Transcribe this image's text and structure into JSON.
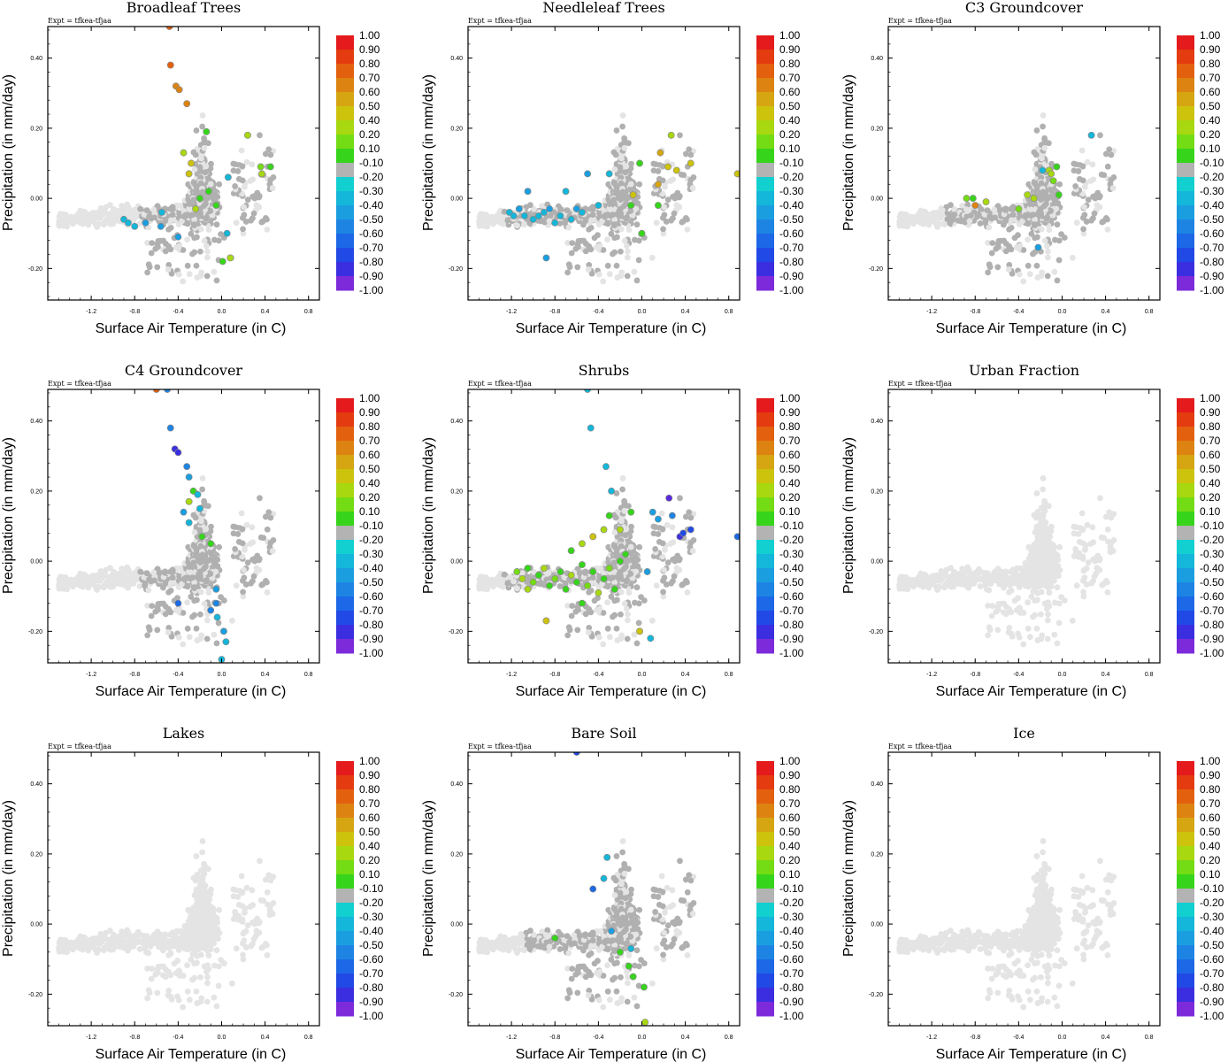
{
  "chart_data": {
    "type": "scatter",
    "experiment_label": "Expt = tfkea-tfjaa",
    "xlabel": "Surface Air Temperature (in C)",
    "ylabel": "Precipitation (in mm/day)",
    "xlim": [
      -1.6,
      0.9
    ],
    "ylim": [
      -0.29,
      0.49
    ],
    "x_ticks": [
      -1.2,
      -0.8,
      -0.4,
      0.0,
      0.4,
      0.8
    ],
    "x_tick_labels": [
      "-1.2",
      "-0.8",
      "-0.4",
      "0.0",
      "0.4",
      "0.8"
    ],
    "y_ticks": [
      -0.2,
      0.0,
      0.2,
      0.4
    ],
    "y_tick_labels": [
      "-0.20",
      "0.00",
      "0.20",
      "0.40"
    ],
    "colorbar": {
      "labels": [
        "1.00",
        "0.90",
        "0.80",
        "0.70",
        "0.60",
        "0.50",
        "0.40",
        "0.20",
        "0.10",
        "-0.10",
        "-0.20",
        "-0.30",
        "-0.40",
        "-0.50",
        "-0.60",
        "-0.70",
        "-0.80",
        "-0.90",
        "-1.00"
      ],
      "colors": [
        "#e41a1c",
        "#e43c10",
        "#e3600f",
        "#dc8311",
        "#d6a512",
        "#cdc30c",
        "#a8d80f",
        "#74dc14",
        "#37d41c",
        "#b3b3b3",
        "#12cfd0",
        "#14b6d9",
        "#1b9ee0",
        "#1e84e3",
        "#1c68e6",
        "#2149e6",
        "#3a2ee0",
        "#5a28dd",
        "#7d2ada"
      ]
    },
    "panels": [
      {
        "title": "Broadleaf Trees",
        "colored_points": [
          {
            "x": -0.48,
            "y": 0.49,
            "value": 0.75
          },
          {
            "x": -0.47,
            "y": 0.38,
            "value": 0.7
          },
          {
            "x": -0.42,
            "y": 0.32,
            "value": 0.65
          },
          {
            "x": -0.39,
            "y": 0.31,
            "value": 0.65
          },
          {
            "x": -0.32,
            "y": 0.27,
            "value": 0.6
          },
          {
            "x": -0.28,
            "y": 0.1,
            "value": 0.45
          },
          {
            "x": -0.3,
            "y": 0.07,
            "value": 0.4
          },
          {
            "x": -0.35,
            "y": 0.13,
            "value": 0.3
          },
          {
            "x": -0.14,
            "y": 0.19,
            "value": 0.15
          },
          {
            "x": -0.12,
            "y": 0.02,
            "value": 0.15
          },
          {
            "x": -0.2,
            "y": 0.0,
            "value": 0.15
          },
          {
            "x": -0.24,
            "y": -0.03,
            "value": 0.3
          },
          {
            "x": -0.05,
            "y": -0.02,
            "value": 0.15
          },
          {
            "x": 0.24,
            "y": 0.18,
            "value": 0.35
          },
          {
            "x": 0.36,
            "y": 0.09,
            "value": 0.25
          },
          {
            "x": 0.45,
            "y": 0.09,
            "value": 0.15
          },
          {
            "x": 0.37,
            "y": 0.07,
            "value": 0.35
          },
          {
            "x": 0.08,
            "y": -0.17,
            "value": 0.35
          },
          {
            "x": 0.01,
            "y": -0.18,
            "value": 0.15
          },
          {
            "x": -0.9,
            "y": -0.06,
            "value": -0.25
          },
          {
            "x": -0.86,
            "y": -0.07,
            "value": -0.25
          },
          {
            "x": -0.8,
            "y": -0.08,
            "value": -0.25
          },
          {
            "x": -0.7,
            "y": -0.07,
            "value": -0.35
          },
          {
            "x": -0.56,
            "y": -0.08,
            "value": -0.3
          },
          {
            "x": -0.55,
            "y": -0.04,
            "value": -0.25
          },
          {
            "x": -0.4,
            "y": -0.11,
            "value": -0.3
          },
          {
            "x": 0.06,
            "y": 0.06,
            "value": -0.25
          },
          {
            "x": 0.05,
            "y": -0.1,
            "value": -0.25
          }
        ]
      },
      {
        "title": "Needleleaf Trees",
        "colored_points": [
          {
            "x": 0.88,
            "y": 0.07,
            "value": 0.4
          },
          {
            "x": 0.27,
            "y": 0.18,
            "value": 0.35
          },
          {
            "x": 0.17,
            "y": 0.13,
            "value": 0.55
          },
          {
            "x": 0.15,
            "y": 0.04,
            "value": 0.5
          },
          {
            "x": 0.24,
            "y": 0.09,
            "value": 0.4
          },
          {
            "x": 0.32,
            "y": 0.08,
            "value": 0.4
          },
          {
            "x": 0.45,
            "y": 0.1,
            "value": 0.4
          },
          {
            "x": -0.02,
            "y": 0.1,
            "value": 0.15
          },
          {
            "x": -0.08,
            "y": 0.01,
            "value": 0.4
          },
          {
            "x": -0.1,
            "y": -0.02,
            "value": 0.15
          },
          {
            "x": 0.15,
            "y": -0.02,
            "value": 0.15
          },
          {
            "x": 0.0,
            "y": -0.1,
            "value": 0.15
          },
          {
            "x": -0.5,
            "y": 0.07,
            "value": -0.3
          },
          {
            "x": -0.3,
            "y": 0.07,
            "value": -0.25
          },
          {
            "x": -0.4,
            "y": -0.02,
            "value": -0.25
          },
          {
            "x": -0.6,
            "y": -0.03,
            "value": -0.3
          },
          {
            "x": -0.7,
            "y": 0.02,
            "value": -0.25
          },
          {
            "x": -1.22,
            "y": -0.04,
            "value": -0.25
          },
          {
            "x": -1.18,
            "y": -0.05,
            "value": -0.25
          },
          {
            "x": -1.13,
            "y": -0.03,
            "value": -0.3
          },
          {
            "x": -1.08,
            "y": -0.05,
            "value": -0.25
          },
          {
            "x": -1.05,
            "y": 0.02,
            "value": -0.3
          },
          {
            "x": -1.0,
            "y": -0.06,
            "value": -0.25
          },
          {
            "x": -0.95,
            "y": -0.05,
            "value": -0.25
          },
          {
            "x": -0.9,
            "y": -0.04,
            "value": -0.25
          },
          {
            "x": -0.85,
            "y": -0.03,
            "value": -0.3
          },
          {
            "x": -0.8,
            "y": -0.07,
            "value": -0.25
          },
          {
            "x": -0.75,
            "y": -0.05,
            "value": -0.25
          },
          {
            "x": -0.65,
            "y": -0.06,
            "value": -0.25
          },
          {
            "x": -0.88,
            "y": -0.17,
            "value": -0.3
          },
          {
            "x": -0.55,
            "y": -0.04,
            "value": -0.25
          }
        ]
      },
      {
        "title": "C3 Groundcover",
        "colored_points": [
          {
            "x": -0.8,
            "y": -0.02,
            "value": 0.65
          },
          {
            "x": -0.88,
            "y": 0.0,
            "value": 0.2
          },
          {
            "x": -0.82,
            "y": 0.0,
            "value": 0.15
          },
          {
            "x": -0.7,
            "y": -0.01,
            "value": 0.35
          },
          {
            "x": -0.4,
            "y": -0.03,
            "value": 0.2
          },
          {
            "x": -0.32,
            "y": 0.01,
            "value": 0.35
          },
          {
            "x": -0.26,
            "y": 0.0,
            "value": 0.35
          },
          {
            "x": -0.12,
            "y": 0.08,
            "value": 0.35
          },
          {
            "x": -0.1,
            "y": 0.07,
            "value": 0.3
          },
          {
            "x": -0.08,
            "y": 0.05,
            "value": 0.2
          },
          {
            "x": -0.05,
            "y": 0.09,
            "value": 0.15
          },
          {
            "x": -0.03,
            "y": 0.01,
            "value": 0.15
          },
          {
            "x": -0.18,
            "y": 0.08,
            "value": -0.25
          },
          {
            "x": 0.27,
            "y": 0.18,
            "value": -0.25
          },
          {
            "x": -0.22,
            "y": -0.14,
            "value": -0.3
          }
        ]
      },
      {
        "title": "C4 Groundcover",
        "colored_points": [
          {
            "x": -0.6,
            "y": 0.49,
            "value": 0.7
          },
          {
            "x": -0.5,
            "y": 0.49,
            "value": -0.4
          },
          {
            "x": -0.47,
            "y": 0.38,
            "value": -0.45
          },
          {
            "x": -0.43,
            "y": 0.32,
            "value": -0.7
          },
          {
            "x": -0.4,
            "y": 0.31,
            "value": -0.75
          },
          {
            "x": -0.32,
            "y": 0.27,
            "value": -0.4
          },
          {
            "x": -0.3,
            "y": 0.24,
            "value": -0.3
          },
          {
            "x": -0.26,
            "y": 0.2,
            "value": 0.15
          },
          {
            "x": -0.22,
            "y": 0.19,
            "value": -0.25
          },
          {
            "x": -0.3,
            "y": 0.17,
            "value": 0.35
          },
          {
            "x": -0.35,
            "y": 0.14,
            "value": -0.3
          },
          {
            "x": -0.2,
            "y": 0.15,
            "value": -0.25
          },
          {
            "x": -0.3,
            "y": 0.11,
            "value": -0.25
          },
          {
            "x": -0.18,
            "y": 0.07,
            "value": 0.15
          },
          {
            "x": -0.1,
            "y": 0.05,
            "value": 0.15
          },
          {
            "x": -0.05,
            "y": -0.08,
            "value": -0.3
          },
          {
            "x": -0.04,
            "y": -0.16,
            "value": -0.25
          },
          {
            "x": 0.02,
            "y": -0.2,
            "value": -0.3
          },
          {
            "x": 0.04,
            "y": -0.23,
            "value": -0.25
          },
          {
            "x": 0.0,
            "y": -0.28,
            "value": -0.25
          },
          {
            "x": -0.05,
            "y": -0.12,
            "value": -0.4
          },
          {
            "x": -0.4,
            "y": -0.12,
            "value": -0.5
          },
          {
            "x": -0.1,
            "y": -0.14,
            "value": -0.4
          }
        ]
      },
      {
        "title": "Shrubs",
        "colored_points": [
          {
            "x": -0.5,
            "y": 0.49,
            "value": -0.25
          },
          {
            "x": -0.47,
            "y": 0.38,
            "value": -0.25
          },
          {
            "x": -0.33,
            "y": 0.27,
            "value": -0.25
          },
          {
            "x": -0.28,
            "y": 0.2,
            "value": -0.25
          },
          {
            "x": 0.25,
            "y": 0.18,
            "value": -0.85
          },
          {
            "x": 0.28,
            "y": 0.13,
            "value": -0.4
          },
          {
            "x": 0.35,
            "y": 0.07,
            "value": -0.7
          },
          {
            "x": 0.38,
            "y": 0.08,
            "value": -0.65
          },
          {
            "x": 0.45,
            "y": 0.09,
            "value": -0.6
          },
          {
            "x": 0.88,
            "y": 0.07,
            "value": -0.55
          },
          {
            "x": 0.1,
            "y": 0.14,
            "value": -0.35
          },
          {
            "x": 0.15,
            "y": 0.12,
            "value": -0.3
          },
          {
            "x": -0.1,
            "y": 0.14,
            "value": 0.15
          },
          {
            "x": -0.2,
            "y": 0.09,
            "value": 0.35
          },
          {
            "x": -0.3,
            "y": 0.13,
            "value": 0.15
          },
          {
            "x": -0.35,
            "y": 0.09,
            "value": 0.35
          },
          {
            "x": -0.45,
            "y": 0.07,
            "value": 0.4
          },
          {
            "x": -0.55,
            "y": 0.05,
            "value": 0.35
          },
          {
            "x": -0.65,
            "y": 0.03,
            "value": 0.15
          },
          {
            "x": -1.15,
            "y": -0.03,
            "value": 0.2
          },
          {
            "x": -1.1,
            "y": -0.05,
            "value": 0.35
          },
          {
            "x": -1.05,
            "y": -0.02,
            "value": 0.15
          },
          {
            "x": -1.0,
            "y": -0.06,
            "value": 0.25
          },
          {
            "x": -0.95,
            "y": -0.04,
            "value": 0.15
          },
          {
            "x": -0.9,
            "y": -0.02,
            "value": 0.35
          },
          {
            "x": -0.85,
            "y": -0.07,
            "value": 0.15
          },
          {
            "x": -0.8,
            "y": -0.05,
            "value": 0.25
          },
          {
            "x": -0.75,
            "y": -0.03,
            "value": 0.15
          },
          {
            "x": -0.7,
            "y": -0.08,
            "value": 0.15
          },
          {
            "x": -0.65,
            "y": -0.04,
            "value": 0.35
          },
          {
            "x": -0.6,
            "y": -0.06,
            "value": 0.15
          },
          {
            "x": -0.55,
            "y": -0.01,
            "value": 0.15
          },
          {
            "x": -0.5,
            "y": -0.07,
            "value": 0.2
          },
          {
            "x": -0.45,
            "y": -0.03,
            "value": 0.15
          },
          {
            "x": -0.4,
            "y": -0.09,
            "value": 0.35
          },
          {
            "x": -0.35,
            "y": -0.05,
            "value": 0.15
          },
          {
            "x": -0.3,
            "y": -0.02,
            "value": 0.25
          },
          {
            "x": -0.25,
            "y": -0.08,
            "value": 0.15
          },
          {
            "x": -0.2,
            "y": 0.0,
            "value": 0.15
          },
          {
            "x": -0.15,
            "y": 0.02,
            "value": 0.15
          },
          {
            "x": -1.05,
            "y": -0.08,
            "value": 0.35
          },
          {
            "x": -0.88,
            "y": -0.17,
            "value": 0.4
          },
          {
            "x": -0.55,
            "y": -0.12,
            "value": 0.15
          },
          {
            "x": -0.02,
            "y": -0.2,
            "value": 0.4
          },
          {
            "x": 0.08,
            "y": -0.22,
            "value": -0.25
          },
          {
            "x": 0.05,
            "y": -0.03,
            "value": -0.3
          }
        ]
      },
      {
        "title": "Urban Fraction",
        "colored_points": []
      },
      {
        "title": "Lakes",
        "colored_points": []
      },
      {
        "title": "Bare Soil",
        "colored_points": [
          {
            "x": -0.6,
            "y": 0.49,
            "value": -0.65
          },
          {
            "x": -0.32,
            "y": 0.19,
            "value": -0.25
          },
          {
            "x": -0.35,
            "y": 0.13,
            "value": -0.25
          },
          {
            "x": -0.45,
            "y": 0.1,
            "value": -0.5
          },
          {
            "x": -0.8,
            "y": -0.04,
            "value": 0.15
          },
          {
            "x": -0.2,
            "y": -0.08,
            "value": 0.15
          },
          {
            "x": -0.12,
            "y": -0.12,
            "value": 0.15
          },
          {
            "x": -0.08,
            "y": -0.15,
            "value": 0.15
          },
          {
            "x": 0.02,
            "y": -0.18,
            "value": 0.15
          },
          {
            "x": 0.03,
            "y": -0.28,
            "value": 0.35
          },
          {
            "x": -0.1,
            "y": -0.07,
            "value": -0.25
          },
          {
            "x": -0.28,
            "y": -0.02,
            "value": -0.3
          }
        ]
      },
      {
        "title": "Ice",
        "colored_points": []
      }
    ]
  }
}
